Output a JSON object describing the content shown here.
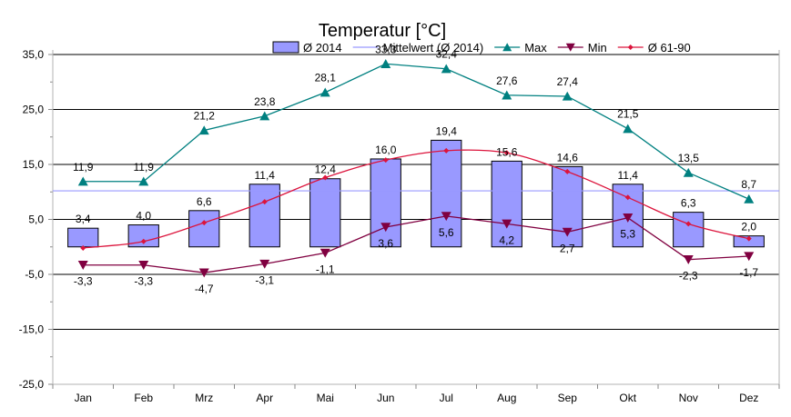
{
  "chart_data": {
    "type": "bar",
    "title": "Temperatur [°C]",
    "categories": [
      "Jan",
      "Feb",
      "Mrz",
      "Apr",
      "Mai",
      "Jun",
      "Jul",
      "Aug",
      "Sep",
      "Okt",
      "Nov",
      "Dez"
    ],
    "ylim": [
      -25,
      35
    ],
    "yticks": [
      35,
      25,
      15,
      5,
      -5,
      -15,
      -25
    ],
    "ytick_labels": [
      "35,0",
      "25,0",
      "15,0",
      "5,0",
      "-5,0",
      "-15,0",
      "-25,0"
    ],
    "grid": true,
    "legend_position": "top",
    "series": [
      {
        "name": "Ø 2014",
        "kind": "bar",
        "color": "#9999ff",
        "values": [
          3.4,
          4.0,
          6.6,
          11.4,
          12.4,
          16.0,
          19.4,
          15.6,
          14.6,
          11.4,
          6.3,
          2.0
        ],
        "labels": [
          "3,4",
          "4,0",
          "6,6",
          "11,4",
          "12,4",
          "16,0",
          "19,4",
          "15,6",
          "14,6",
          "11,4",
          "6,3",
          "2,0"
        ]
      },
      {
        "name": "Mittelwert (Ø 2014)",
        "kind": "hline",
        "color": "#9999ff",
        "value": 10.2
      },
      {
        "name": "Max",
        "kind": "line",
        "marker": "triangle-up",
        "color": "#008080",
        "values": [
          11.9,
          11.9,
          21.2,
          23.8,
          28.1,
          33.3,
          32.4,
          27.6,
          27.4,
          21.5,
          13.5,
          8.7
        ],
        "labels": [
          "11,9",
          "11,9",
          "21,2",
          "23,8",
          "28,1",
          "33,3",
          "32,4",
          "27,6",
          "27,4",
          "21,5",
          "13,5",
          "8,7"
        ]
      },
      {
        "name": "Min",
        "kind": "line",
        "marker": "triangle-down",
        "color": "#800040",
        "values": [
          -3.3,
          -3.3,
          -4.7,
          -3.1,
          -1.1,
          3.6,
          5.6,
          4.2,
          2.7,
          5.3,
          -2.3,
          -1.7
        ],
        "labels": [
          "-3,3",
          "-3,3",
          "-4,7",
          "-3,1",
          "-1,1",
          "3,6",
          "5,6",
          "4,2",
          "2,7",
          "5,3",
          "-2,3",
          "-1,7"
        ]
      },
      {
        "name": "Ø 61-90",
        "kind": "line",
        "marker": "diamond",
        "color": "#dc143c",
        "values": [
          -0.2,
          1.0,
          4.4,
          8.2,
          12.6,
          15.8,
          17.5,
          17.1,
          13.7,
          9.0,
          4.2,
          1.5
        ]
      }
    ]
  }
}
